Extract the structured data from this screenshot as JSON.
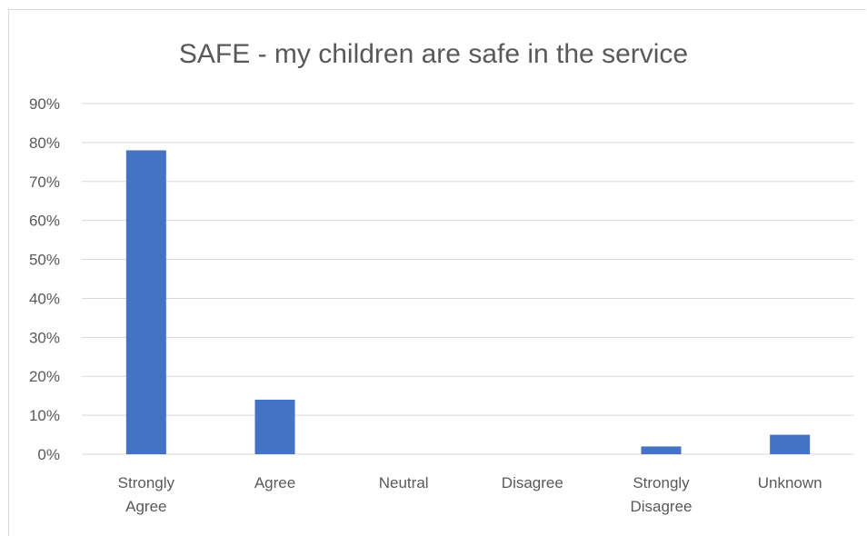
{
  "chart_data": {
    "type": "bar",
    "title": "SAFE - my children are safe in the service",
    "xlabel": "",
    "ylabel": "",
    "categories": [
      "Strongly Agree",
      "Agree",
      "Neutral",
      "Disagree",
      "Strongly Disagree",
      "Unknown"
    ],
    "category_lines": [
      [
        "Strongly",
        "Agree"
      ],
      [
        "Agree"
      ],
      [
        "Neutral"
      ],
      [
        "Disagree"
      ],
      [
        "Strongly",
        "Disagree"
      ],
      [
        "Unknown"
      ]
    ],
    "values": [
      0.78,
      0.14,
      0,
      0,
      0.02,
      0.05
    ],
    "ylim": [
      0,
      0.9
    ],
    "yticks": [
      0,
      0.1,
      0.2,
      0.3,
      0.4,
      0.5,
      0.6,
      0.7,
      0.8,
      0.9
    ],
    "ytick_labels": [
      "0%",
      "10%",
      "20%",
      "30%",
      "40%",
      "50%",
      "60%",
      "70%",
      "80%",
      "90%"
    ],
    "grid": true,
    "legend": "none",
    "bar_color": "#4472c4",
    "grid_color": "#d9d9d9",
    "text_color": "#595959"
  }
}
